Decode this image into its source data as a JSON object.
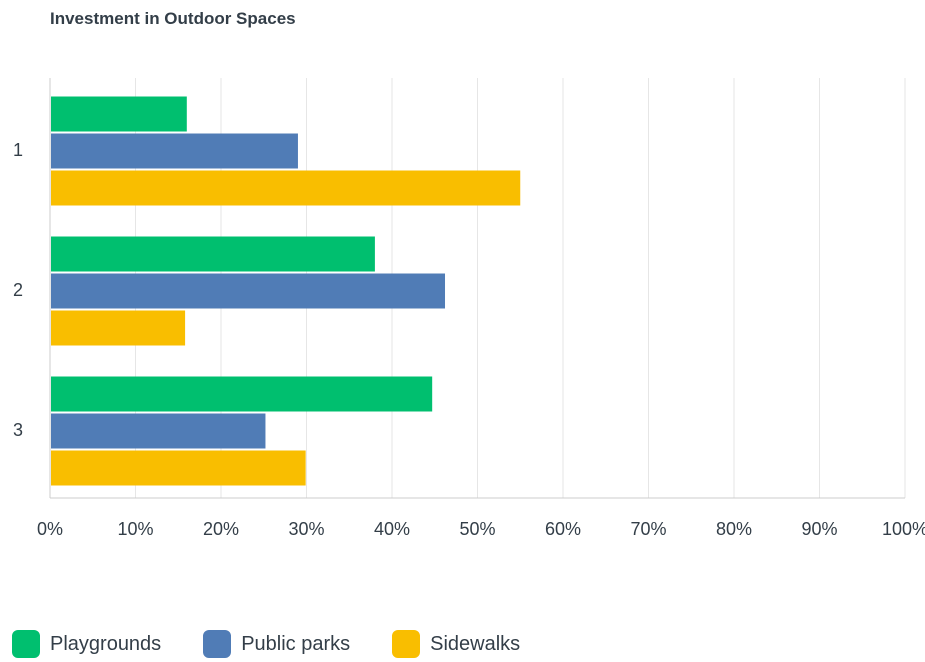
{
  "chart_data": {
    "type": "bar",
    "orientation": "horizontal",
    "title": "Investment in Outdoor Spaces",
    "xlabel": "",
    "ylabel": "",
    "categories": [
      "1",
      "2",
      "3"
    ],
    "x_ticks": [
      "0%",
      "10%",
      "20%",
      "30%",
      "40%",
      "50%",
      "60%",
      "70%",
      "80%",
      "90%",
      "100%"
    ],
    "xlim": [
      0,
      100
    ],
    "grid": true,
    "legend_position": "bottom-left",
    "series": [
      {
        "name": "Playgrounds",
        "color": "#00bf6f",
        "values": [
          16,
          38,
          44.7
        ]
      },
      {
        "name": "Public parks",
        "color": "#507cb6",
        "values": [
          29,
          46.2,
          25.2
        ]
      },
      {
        "name": "Sidewalks",
        "color": "#f9be00",
        "values": [
          55,
          15.8,
          29.9
        ]
      }
    ]
  }
}
